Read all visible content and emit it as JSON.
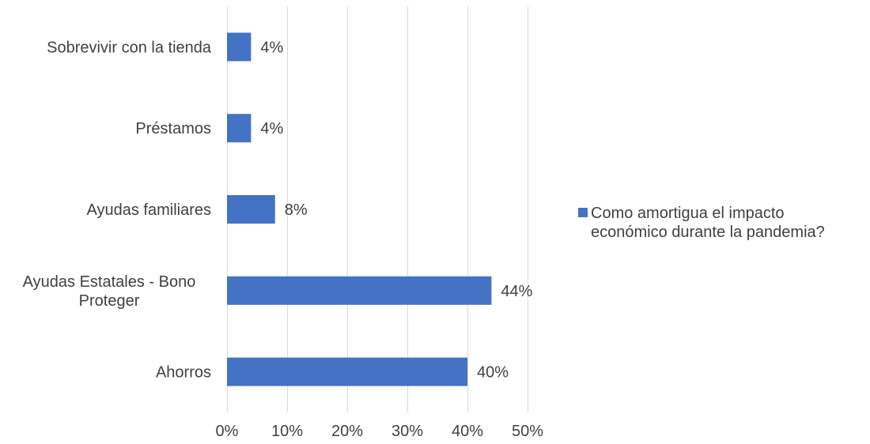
{
  "chart_data": {
    "type": "bar",
    "orientation": "horizontal",
    "categories": [
      "Ahorros",
      "Ayudas Estatales - Bono Proteger",
      "Ayudas familiares",
      "Préstamos",
      "Sobrevivir con la tienda"
    ],
    "category_lines": [
      [
        "Ahorros"
      ],
      [
        "Ayudas Estatales - Bono",
        "Proteger"
      ],
      [
        "Ayudas familiares"
      ],
      [
        "Préstamos"
      ],
      [
        "Sobrevivir con la tienda"
      ]
    ],
    "series": [
      {
        "name": "Como amortigua el impacto económico durante la pandemia?",
        "values": [
          0.4,
          0.44,
          0.08,
          0.04,
          0.04
        ],
        "labels": [
          "40%",
          "44%",
          "8%",
          "4%",
          "4%"
        ],
        "color": "#4472C4"
      }
    ],
    "xlim": [
      0,
      0.5
    ],
    "xticks": [
      0,
      0.1,
      0.2,
      0.3,
      0.4,
      0.5
    ],
    "xtick_labels": [
      "0%",
      "10%",
      "20%",
      "30%",
      "40%",
      "50%"
    ],
    "grid": "vertical",
    "legend": "right",
    "title": "",
    "xlabel": "",
    "ylabel": ""
  },
  "legend": {
    "lines": [
      "Como amortigua el impacto",
      "económico durante la pandemia?"
    ]
  }
}
